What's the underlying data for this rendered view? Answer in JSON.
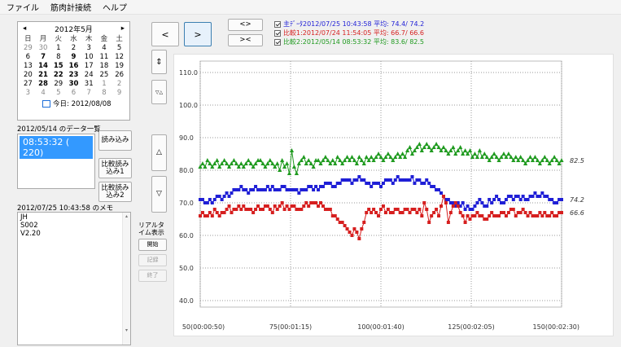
{
  "menu": {
    "file": "ファイル",
    "measure": "筋肉計接続",
    "help": "ヘルプ"
  },
  "calendar": {
    "month_label": "2012年5月",
    "prev": "◂",
    "next": "▸",
    "weekdays": [
      "日",
      "月",
      "火",
      "水",
      "木",
      "金",
      "土"
    ],
    "days": [
      [
        "29",
        "30",
        "1",
        "2",
        "3",
        "4",
        "5"
      ],
      [
        "6",
        "7",
        "8",
        "9",
        "10",
        "11",
        "12"
      ],
      [
        "13",
        "14",
        "15",
        "16",
        "17",
        "18",
        "19"
      ],
      [
        "20",
        "21",
        "22",
        "23",
        "24",
        "25",
        "26"
      ],
      [
        "27",
        "28",
        "29",
        "30",
        "31",
        "1",
        "2"
      ],
      [
        "3",
        "4",
        "5",
        "6",
        "7",
        "8",
        "9"
      ]
    ],
    "today_label": "今日: 2012/08/08"
  },
  "data_list": {
    "title": "2012/05/14 のデータ一覧",
    "selected_item": "08:53:32 ( 220)",
    "load_button": "読み込み",
    "compare1_button": "比較読み込み1",
    "compare2_button": "比較読み込み2"
  },
  "memo": {
    "title": "2012/07/25 10:43:58 のメモ",
    "lines": [
      "JH",
      "S002",
      "V2.20"
    ]
  },
  "nav": {
    "prev": "<",
    "next": ">",
    "expand": "<>",
    "shrink": "><"
  },
  "zoom": {
    "fit": "⇕",
    "shrink_v": "▽△",
    "up": "△",
    "down": "▽"
  },
  "realtime": {
    "title": "リアルタイム表示",
    "start": "開始",
    "record": "記録",
    "end": "終了"
  },
  "legend": [
    {
      "text": "主ﾃﾞｰﾀ2012/07/25 10:43:58 平均:  74.4/  74.2",
      "color": "#1f1fd6"
    },
    {
      "text": "比較1:2012/07/24 11:54:05 平均:  66.7/  66.6",
      "color": "#d61f1f"
    },
    {
      "text": "比較2:2012/05/14 08:53:32 平均:  83.6/  82.5",
      "color": "#1f9a1f"
    }
  ],
  "colors": {
    "main": "#1f1fd6",
    "cmp1": "#d61f1f",
    "cmp2": "#1f9a1f"
  },
  "chart_data": {
    "type": "line",
    "ylim": [
      40,
      110
    ],
    "xlim": [
      50,
      150
    ],
    "y_ticks": [
      "110.0",
      "100.0",
      "90.0",
      "80.0",
      "70.0",
      "60.0",
      "50.0",
      "40.0"
    ],
    "x_ticks": [
      "50(00:00:50)",
      "75(00:01:15)",
      "100(00:01:40)",
      "125(00:02:05)",
      "150(00:02:30)"
    ],
    "series": [
      {
        "key": "main",
        "end_label": "74.2",
        "values": [
          71,
          71,
          70,
          70,
          71,
          70,
          71,
          72,
          72,
          71,
          72,
          73,
          72,
          73,
          74,
          74,
          74,
          75,
          74,
          74,
          73,
          74,
          74,
          75,
          74,
          74,
          74,
          74,
          75,
          74,
          75,
          74,
          74,
          74,
          75,
          75,
          74,
          74,
          74,
          74,
          74,
          73,
          74,
          74,
          74,
          75,
          75,
          74,
          75,
          74,
          75,
          75,
          76,
          76,
          76,
          75,
          75,
          76,
          76,
          77,
          77,
          77,
          77,
          76,
          77,
          77,
          78,
          77,
          77,
          76,
          76,
          75,
          76,
          76,
          76,
          75,
          76,
          77,
          77,
          77,
          76,
          77,
          78,
          77,
          77,
          77,
          77,
          77,
          78,
          76,
          77,
          77,
          76,
          76,
          77,
          76,
          75,
          75,
          74,
          74,
          73,
          72,
          71,
          71,
          70,
          70,
          69,
          70,
          69,
          70,
          68,
          69,
          68,
          68,
          69,
          70,
          71,
          70,
          69,
          69,
          71,
          70,
          71,
          72,
          71,
          70,
          70,
          71,
          72,
          72,
          71,
          72,
          72,
          71,
          72,
          71,
          71,
          72,
          72,
          73,
          72,
          72,
          73,
          72,
          72,
          71,
          71,
          70,
          70,
          71,
          71
        ]
      },
      {
        "key": "cmp1",
        "end_label": "66.6",
        "values": [
          66,
          67,
          66,
          66,
          67,
          66,
          68,
          67,
          66,
          67,
          67,
          68,
          69,
          67,
          68,
          68,
          69,
          68,
          69,
          68,
          68,
          68,
          67,
          68,
          69,
          68,
          68,
          69,
          69,
          68,
          67,
          69,
          68,
          69,
          70,
          68,
          69,
          68,
          69,
          69,
          68,
          68,
          68,
          69,
          70,
          69,
          70,
          70,
          70,
          69,
          70,
          69,
          68,
          68,
          68,
          66,
          66,
          65,
          64,
          64,
          63,
          62,
          61,
          60,
          62,
          61,
          59,
          62,
          64,
          67,
          68,
          67,
          68,
          67,
          66,
          68,
          69,
          67,
          68,
          67,
          67,
          68,
          68,
          67,
          67,
          68,
          68,
          67,
          68,
          68,
          67,
          68,
          66,
          70,
          68,
          64,
          66,
          67,
          68,
          66,
          69,
          72,
          70,
          64,
          67,
          69,
          70,
          69,
          67,
          66,
          64,
          66,
          65,
          66,
          66,
          67,
          66,
          66,
          65,
          65,
          66,
          67,
          66,
          66,
          66,
          67,
          67,
          66,
          67,
          68,
          68,
          66,
          67,
          67,
          68,
          67,
          66,
          67,
          66,
          66,
          66,
          67,
          66,
          67,
          66,
          66,
          67,
          66,
          66,
          67,
          67
        ]
      },
      {
        "key": "cmp2",
        "end_label": "82.5",
        "values": [
          81,
          82,
          81,
          83,
          82,
          81,
          82,
          83,
          81,
          82,
          83,
          82,
          81,
          82,
          83,
          82,
          81,
          82,
          81,
          82,
          83,
          82,
          81,
          82,
          83,
          83,
          82,
          81,
          82,
          83,
          82,
          81,
          82,
          80,
          83,
          81,
          82,
          79,
          86,
          81,
          79,
          82,
          83,
          84,
          82,
          83,
          82,
          81,
          83,
          83,
          82,
          83,
          84,
          83,
          82,
          83,
          82,
          84,
          83,
          82,
          83,
          84,
          83,
          84,
          83,
          82,
          84,
          83,
          82,
          84,
          83,
          84,
          83,
          84,
          85,
          84,
          83,
          84,
          85,
          84,
          83,
          84,
          85,
          84,
          85,
          84,
          86,
          87,
          85,
          86,
          87,
          88,
          86,
          87,
          88,
          87,
          86,
          87,
          88,
          87,
          86,
          87,
          86,
          85,
          86,
          87,
          85,
          86,
          87,
          85,
          86,
          85,
          86,
          84,
          85,
          84,
          86,
          84,
          85,
          84,
          83,
          84,
          85,
          84,
          83,
          84,
          85,
          84,
          85,
          84,
          83,
          84,
          83,
          84,
          83,
          82,
          83,
          84,
          83,
          84,
          83,
          82,
          83,
          84,
          83,
          82,
          83,
          84,
          83,
          82,
          83
        ]
      }
    ]
  }
}
